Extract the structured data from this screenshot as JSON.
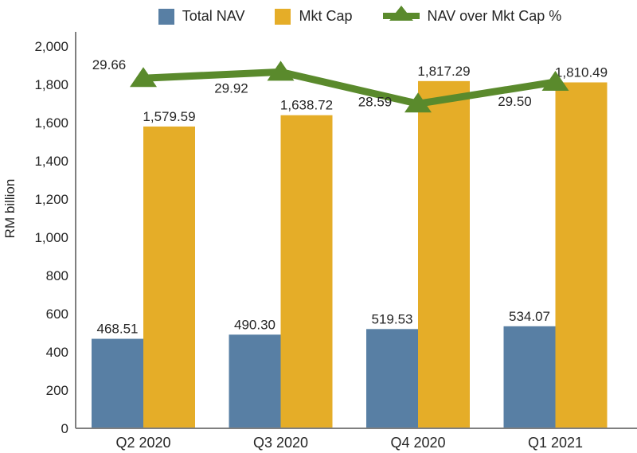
{
  "chart_data": {
    "type": "bar",
    "title": "",
    "categories": [
      "Q2 2020",
      "Q3 2020",
      "Q4 2020",
      "Q1 2021"
    ],
    "series": [
      {
        "name": "Total NAV",
        "type": "bar",
        "color": "#587FA4",
        "values": [
          468.51,
          490.3,
          519.53,
          534.07
        ],
        "labels": [
          "468.51",
          "490.30",
          "519.53",
          "534.07"
        ]
      },
      {
        "name": "Mkt Cap",
        "type": "bar",
        "color": "#E5AD28",
        "values": [
          1579.59,
          1638.72,
          1817.29,
          1810.49
        ],
        "labels": [
          "1,579.59",
          "1,638.72",
          "1,817.29",
          "1,810.49"
        ]
      },
      {
        "name": "NAV over Mkt Cap %",
        "type": "line",
        "color": "#5A8A2C",
        "values": [
          29.66,
          29.92,
          28.59,
          29.5
        ],
        "labels": [
          "29.66",
          "29.92",
          "28.59",
          "29.50"
        ]
      }
    ],
    "xlabel": "",
    "ylabel": "RM billion",
    "ylim": [
      0,
      2000
    ],
    "ytick_step": 200,
    "ytick_labels": [
      "0",
      "200",
      "400",
      "600",
      "800",
      "1,000",
      "1,200",
      "1,400",
      "1,600",
      "1,800",
      "2,000"
    ],
    "secondary_axis_range": [
      15,
      31
    ],
    "legend_position": "top",
    "grid": false,
    "colors": {
      "text": "#262626",
      "axis": "#7F7F7F",
      "background": "#FFFFFF"
    }
  }
}
